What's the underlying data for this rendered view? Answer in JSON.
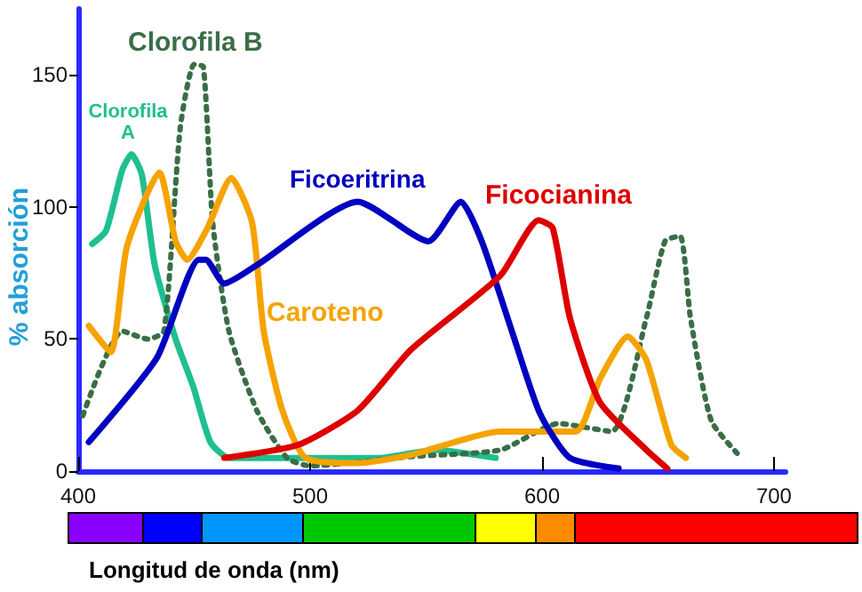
{
  "chart_data": {
    "type": "line",
    "xlabel": "Longitud de onda (nm)",
    "ylabel": "% absorción",
    "xlim": [
      400,
      705
    ],
    "ylim": [
      0,
      175
    ],
    "xticks": [
      400,
      500,
      600,
      700
    ],
    "yticks": [
      0,
      50,
      100,
      150
    ],
    "grid": false,
    "legend": false,
    "marker": "none",
    "series": [
      {
        "name": "Clorofila A",
        "color": "#1fbf8f",
        "x": [
          406,
          412,
          419,
          423,
          427.5,
          433,
          442,
          449.6,
          457,
          465,
          480,
          500,
          530,
          545,
          555,
          565,
          580
        ],
        "values": [
          86,
          91,
          114,
          120,
          112,
          78,
          50,
          32,
          11,
          5,
          5,
          5,
          5,
          7,
          8,
          7,
          5
        ]
      },
      {
        "name": "Clorofila B",
        "color": "#3a6e46",
        "line_style": "dotted",
        "x": [
          402,
          419,
          430,
          437,
          444,
          450,
          454,
          458,
          465,
          477,
          490,
          500,
          543.5,
          582,
          607,
          630,
          645,
          653,
          659.5,
          664,
          673,
          686
        ],
        "values": [
          21,
          53,
          50,
          53,
          130,
          154,
          153,
          94,
          53,
          23,
          5,
          2,
          5.5,
          8,
          18,
          15,
          58,
          87,
          89,
          58,
          19,
          5
        ]
      },
      {
        "name": "Caroteno",
        "color": "#f5a300",
        "x": [
          404.6,
          414,
          421,
          435,
          442,
          447,
          455.7,
          466,
          475,
          480,
          488,
          498,
          520,
          543,
          582,
          614.5,
          625,
          637,
          645,
          655.7,
          662
        ],
        "values": [
          55,
          45,
          85,
          113,
          87,
          80,
          92,
          111,
          94,
          53,
          23,
          5,
          3,
          6,
          15,
          15,
          35,
          51,
          42,
          10,
          5
        ]
      },
      {
        "name": "Ficoeritrina",
        "color": "#0000c0",
        "x": [
          404.6,
          434,
          452,
          455,
          463,
          477,
          520.6,
          551,
          565,
          574,
          587,
          599,
          612,
          633
        ],
        "values": [
          11,
          43,
          80,
          80,
          71,
          78,
          102,
          87,
          102,
          87,
          53,
          22,
          5,
          1
        ]
      },
      {
        "name": "Ficocianina",
        "color": "#dd0000",
        "x": [
          463,
          495,
          520.6,
          543.5,
          582,
          598.5,
          604.6,
          612,
          625,
          645,
          654
        ],
        "values": [
          5,
          10,
          23,
          46,
          74,
          95,
          92,
          58,
          26,
          8,
          1
        ]
      }
    ]
  }
}
